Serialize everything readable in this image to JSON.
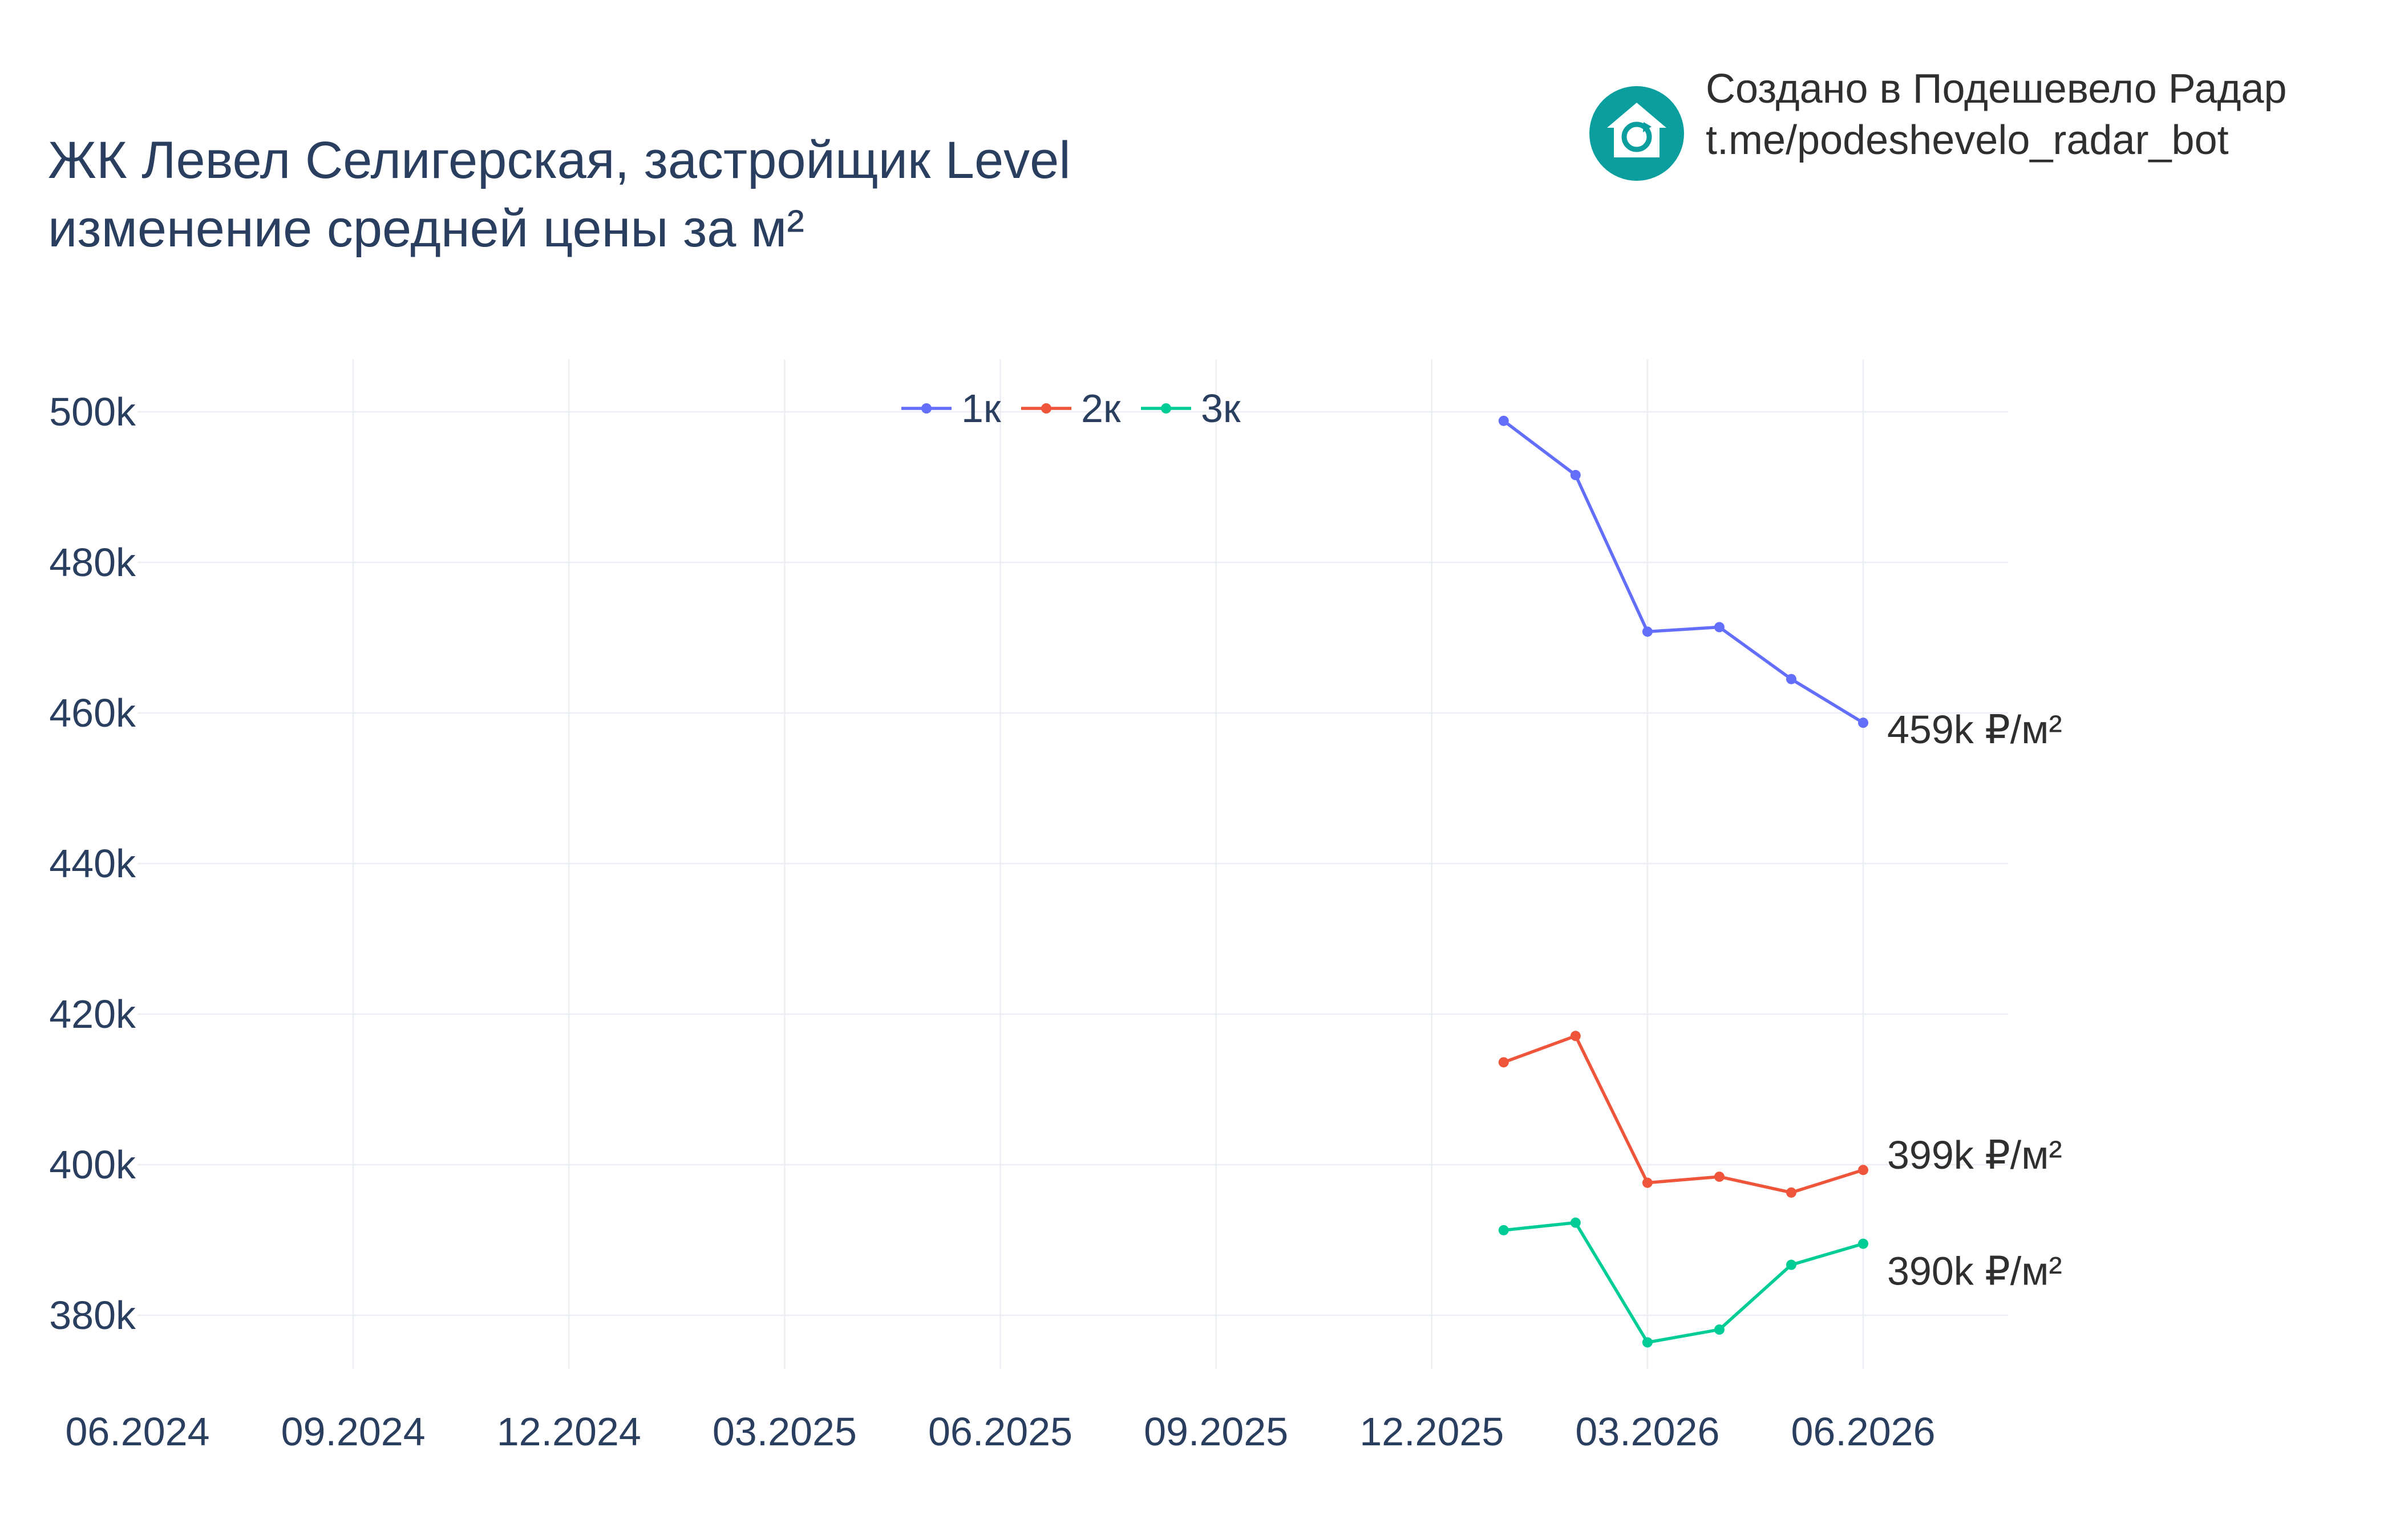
{
  "header": {
    "title_line1": "ЖК Левел Селигерская, застройщик Level",
    "title_line2": "изменение средней цены за м²"
  },
  "branding": {
    "line1": "Создано в Подешевело Радар",
    "line2": "t.me/podeshevelo_radar_bot",
    "logo_icon": "house-refresh-icon",
    "logo_color": "#0a9e9e"
  },
  "chart_data": {
    "type": "line",
    "x_tick_labels": [
      "06.2024",
      "09.2024",
      "12.2024",
      "03.2025",
      "06.2025",
      "09.2025",
      "12.2025",
      "03.2026",
      "06.2026"
    ],
    "x_ticks": [
      "2024-06",
      "2024-09",
      "2024-12",
      "2025-03",
      "2025-06",
      "2025-09",
      "2025-12",
      "2026-03",
      "2026-06"
    ],
    "y_tick_labels": [
      "380k",
      "400k",
      "420k",
      "440k",
      "460k",
      "480k",
      "500k"
    ],
    "y_ticks": [
      380000,
      400000,
      420000,
      440000,
      460000,
      480000,
      500000
    ],
    "xlim": [
      "2024-06",
      "2026-08"
    ],
    "ylim": [
      369000,
      507000
    ],
    "x": [
      "2026-01",
      "2026-02",
      "2026-03",
      "2026-04",
      "2026-05",
      "2026-06"
    ],
    "grid": true,
    "legend_position": "top-center",
    "series": [
      {
        "name": "1к",
        "color": "#636efa",
        "values": [
          498800,
          491600,
          470800,
          471400,
          464500,
          458700
        ],
        "end_label": "459k ₽/м²"
      },
      {
        "name": "2к",
        "color": "#ef553b",
        "values": [
          413600,
          417100,
          397600,
          398400,
          396300,
          399300
        ],
        "end_label": "399k ₽/м²"
      },
      {
        "name": "3к",
        "color": "#00cc96",
        "values": [
          391300,
          392300,
          376400,
          378100,
          386700,
          389500
        ],
        "end_label": "390k ₽/м²"
      }
    ]
  }
}
